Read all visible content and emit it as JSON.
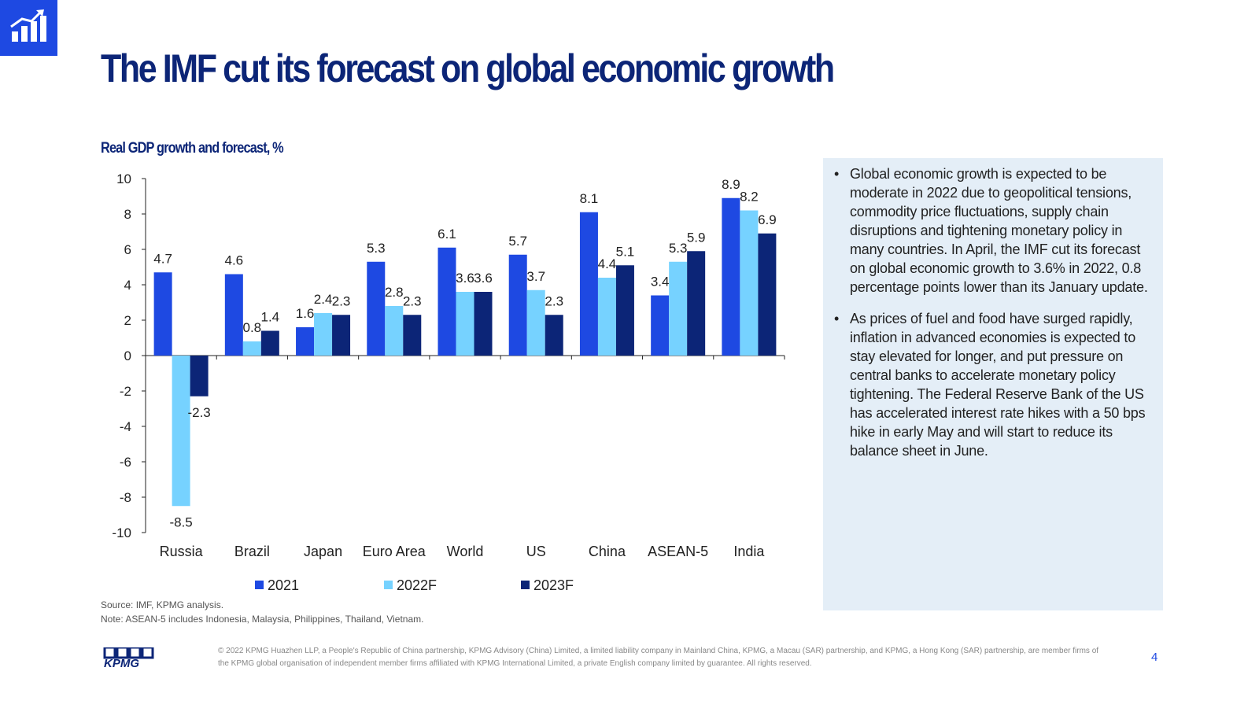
{
  "page": {
    "title": "The IMF cut its forecast on global economic growth",
    "page_number": "4",
    "logo_icon": "bar-chart-growth-icon",
    "brand_logo_text": "KPMG"
  },
  "chart_subtitle": "Real GDP growth and forecast, %",
  "chart_data": {
    "type": "bar",
    "categories": [
      "Russia",
      "Brazil",
      "Japan",
      "Euro Area",
      "World",
      "US",
      "China",
      "ASEAN-5",
      "India"
    ],
    "series": [
      {
        "name": "2021",
        "color": "#1e49e2",
        "values": [
          4.7,
          4.6,
          1.6,
          5.3,
          6.1,
          5.7,
          8.1,
          3.4,
          8.9
        ]
      },
      {
        "name": "2022F",
        "color": "#76d2ff",
        "values": [
          -8.5,
          0.8,
          2.4,
          2.8,
          3.6,
          3.7,
          4.4,
          5.3,
          8.2
        ]
      },
      {
        "name": "2023F",
        "color": "#0c2577",
        "values": [
          -2.3,
          1.4,
          2.3,
          2.3,
          3.6,
          2.3,
          5.1,
          5.9,
          6.9
        ]
      }
    ],
    "ylim": [
      -10,
      10
    ],
    "yticks": [
      "10",
      "8",
      "6",
      "4",
      "2",
      "0",
      "-2",
      "-4",
      "-6",
      "-8",
      "-10"
    ],
    "legend_position": "bottom",
    "grid": false,
    "data_labels": true
  },
  "bullets": [
    "Global economic growth is expected to be moderate in 2022 due to geopolitical tensions, commodity price fluctuations, supply chain disruptions and tightening monetary policy in many countries. In April, the IMF cut its forecast on global economic growth to 3.6% in 2022, 0.8 percentage points lower than its January update.",
    "As prices of fuel and food have surged rapidly, inflation in advanced economies is expected to stay elevated for longer, and put pressure on central banks to accelerate monetary policy tightening. The Federal Reserve Bank of the US has accelerated interest rate hikes with a 50 bps hike in early May and will start to reduce its balance sheet in June."
  ],
  "source": "Source: IMF, KPMG analysis.",
  "note": "Note: ASEAN-5 includes Indonesia, Malaysia, Philippines, Thailand, Vietnam.",
  "copyright": "© 2022 KPMG Huazhen LLP, a People's Republic of China partnership, KPMG Advisory (China) Limited, a limited liability company in Mainland China, KPMG, a Macau (SAR) partnership, and KPMG, a Hong Kong (SAR) partnership, are member firms of the KPMG global organisation of independent member firms affiliated with KPMG International Limited, a private English company limited by guarantee. All rights reserved."
}
